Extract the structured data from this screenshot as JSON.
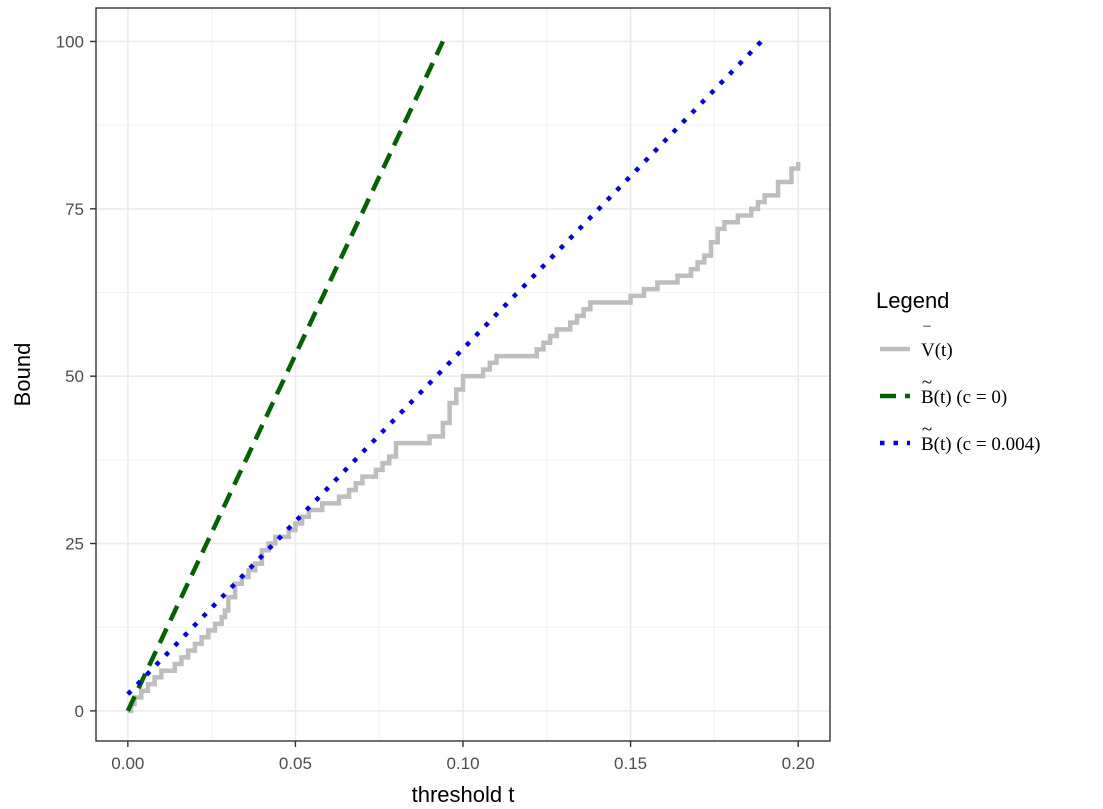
{
  "chart_data": {
    "type": "line",
    "title": "",
    "xlabel": "threshold t",
    "ylabel": "Bound",
    "xlim": [
      -0.0095,
      0.2095
    ],
    "ylim": [
      -4.5,
      105
    ],
    "x_ticks": [
      0.0,
      0.05,
      0.1,
      0.15,
      0.2
    ],
    "x_tick_labels": [
      "0.00",
      "0.05",
      "0.10",
      "0.15",
      "0.20"
    ],
    "y_ticks": [
      0,
      25,
      50,
      75,
      100
    ],
    "y_tick_labels": [
      "0",
      "25",
      "50",
      "75",
      "100"
    ],
    "grid": true,
    "legend": {
      "title": "Legend",
      "placement": "right",
      "entries": [
        {
          "label": "V(t)",
          "accent": "‾"
        },
        {
          "label": "B(t) (c = 0)",
          "accent": "~"
        },
        {
          "label": "B(t) (c = 0.004)",
          "accent": "~"
        }
      ]
    },
    "series": [
      {
        "name": "V(t)",
        "style": "solid",
        "color": "#bebebe",
        "step": true,
        "x": [
          0.0,
          0.001,
          0.002,
          0.004,
          0.006,
          0.008,
          0.01,
          0.012,
          0.014,
          0.016,
          0.018,
          0.02,
          0.022,
          0.024,
          0.026,
          0.028,
          0.029,
          0.03,
          0.032,
          0.034,
          0.036,
          0.038,
          0.04,
          0.042,
          0.044,
          0.046,
          0.048,
          0.05,
          0.052,
          0.054,
          0.056,
          0.058,
          0.06,
          0.063,
          0.066,
          0.068,
          0.07,
          0.072,
          0.074,
          0.076,
          0.078,
          0.08,
          0.082,
          0.09,
          0.094,
          0.096,
          0.098,
          0.1,
          0.104,
          0.106,
          0.108,
          0.11,
          0.122,
          0.124,
          0.126,
          0.128,
          0.132,
          0.134,
          0.136,
          0.138,
          0.146,
          0.15,
          0.154,
          0.158,
          0.164,
          0.168,
          0.17,
          0.172,
          0.174,
          0.176,
          0.178,
          0.182,
          0.184,
          0.186,
          0.188,
          0.19,
          0.194,
          0.198,
          0.2
        ],
        "y": [
          0,
          1,
          2,
          3,
          4,
          5,
          6,
          6,
          7,
          8,
          9,
          10,
          11,
          12,
          13,
          14,
          15,
          17,
          19,
          20,
          21,
          22,
          24,
          25,
          26,
          26,
          27,
          28,
          29,
          30,
          30,
          31,
          31,
          32,
          33,
          34,
          35,
          35,
          36,
          37,
          38,
          40,
          40,
          41,
          43,
          46,
          48,
          50,
          50,
          51,
          52,
          53,
          54,
          55,
          56,
          57,
          58,
          59,
          60,
          61,
          61,
          62,
          63,
          64,
          65,
          66,
          67,
          68,
          70,
          72,
          73,
          74,
          74,
          75,
          76,
          77,
          79,
          81,
          82
        ]
      },
      {
        "name": "B(t) (c = 0)",
        "style": "dashed",
        "color": "#006400",
        "x": [
          0.0,
          0.094
        ],
        "y": [
          0.0,
          100.0
        ]
      },
      {
        "name": "B(t) (c = 0.004)",
        "style": "dotted",
        "color": "#0000ee",
        "x": [
          0.0,
          0.189
        ],
        "y": [
          2.5,
          100.0
        ]
      }
    ]
  }
}
